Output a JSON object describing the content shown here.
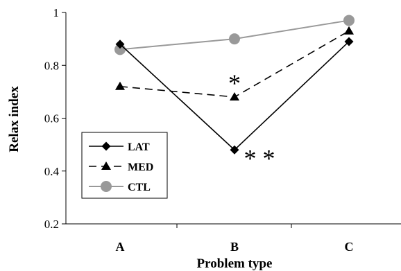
{
  "chart_data": {
    "type": "line",
    "title": "",
    "xlabel": "Problem type",
    "ylabel": "Relax index",
    "categories": [
      "A",
      "B",
      "C"
    ],
    "ylim": [
      0.2,
      1
    ],
    "yticks": [
      0.2,
      0.4,
      0.6,
      0.8,
      1
    ],
    "ytick_labels": [
      "0.2",
      "0.4",
      "0.6",
      "0.8",
      "1"
    ],
    "grid": false,
    "legend_position": "bottom-left",
    "series": [
      {
        "name": "LAT",
        "values": [
          0.88,
          0.48,
          0.89
        ],
        "color": "#000000",
        "dash": "solid",
        "marker": "diamond"
      },
      {
        "name": "MED",
        "values": [
          0.72,
          0.68,
          0.93
        ],
        "color": "#000000",
        "dash": "dashed",
        "marker": "triangle"
      },
      {
        "name": "CTL",
        "values": [
          0.86,
          0.9,
          0.97
        ],
        "color": "#999999",
        "dash": "solid",
        "marker": "circle"
      }
    ],
    "annotations": [
      {
        "text": "*",
        "category": "B",
        "near_series": "MED"
      },
      {
        "text": "* *",
        "category": "B",
        "near_series": "LAT"
      }
    ]
  }
}
